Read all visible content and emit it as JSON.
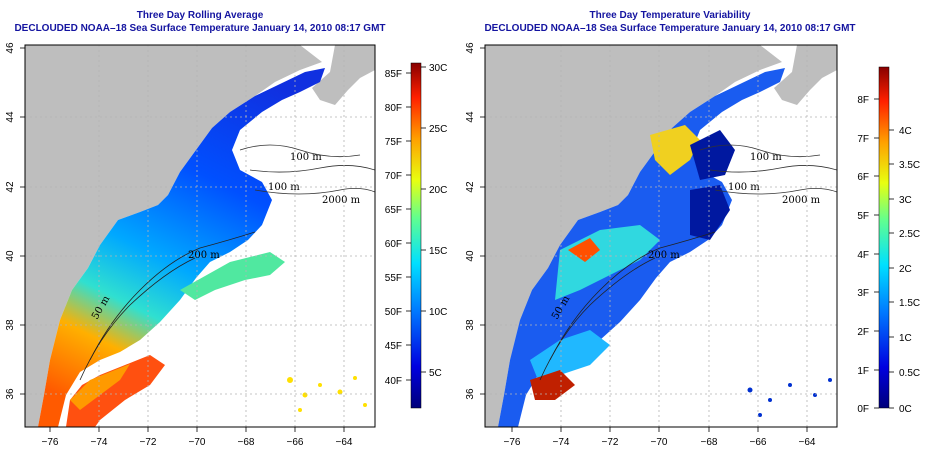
{
  "left": {
    "title": "Three Day Rolling Average",
    "subtitle": "DECLOUDED NOAA–18 Sea Surface Temperature January 14, 2010 08:17 GMT",
    "contour_labels": [
      "100 m",
      "100 m",
      "2000 m",
      "200 m",
      "50 m"
    ],
    "colorbar_f": [
      "85F",
      "80F",
      "75F",
      "70F",
      "65F",
      "60F",
      "55F",
      "50F",
      "45F",
      "40F"
    ],
    "colorbar_c": [
      "30C",
      "25C",
      "20C",
      "15C",
      "10C",
      "5C"
    ]
  },
  "right": {
    "title": "Three Day Temperature Variability",
    "subtitle": "DECLOUDED NOAA–18 Sea Surface Temperature January 14, 2010 08:17 GMT",
    "contour_labels": [
      "100 m",
      "100 m",
      "2000 m",
      "200 m",
      "50 m"
    ],
    "colorbar_f": [
      "8F",
      "7F",
      "6F",
      "5F",
      "4F",
      "3F",
      "2F",
      "1F",
      "0F"
    ],
    "colorbar_c": [
      "4C",
      "3.5C",
      "3C",
      "2.5C",
      "2C",
      "1.5C",
      "1C",
      "0.5C",
      "0C"
    ]
  },
  "axes": {
    "x_ticks": [
      "−76",
      "−74",
      "−72",
      "−70",
      "−68",
      "−66",
      "−64"
    ],
    "y_ticks": [
      "46",
      "44",
      "42",
      "40",
      "38",
      "36"
    ]
  },
  "colors": {
    "title": "#1414a0",
    "land": "#bebebe",
    "grid": "#b4b4b4"
  }
}
